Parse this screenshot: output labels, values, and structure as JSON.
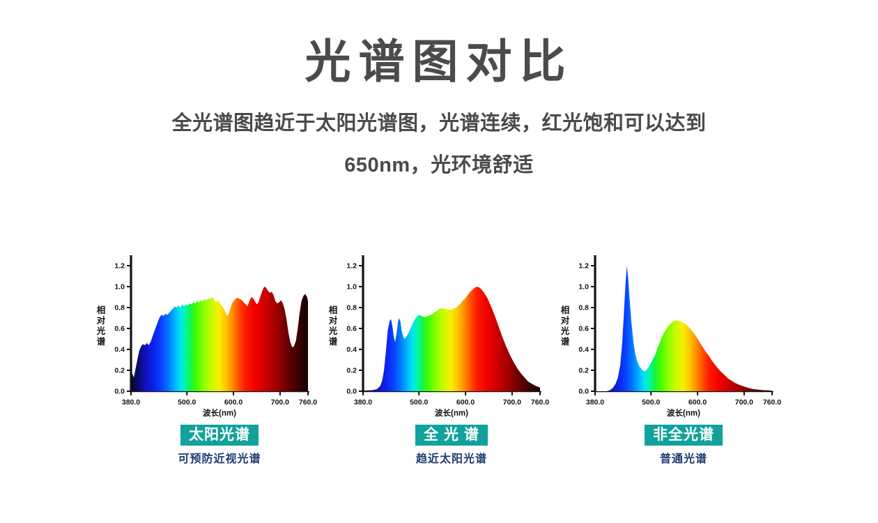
{
  "page": {
    "title": "光谱图对比",
    "subtitle_line1": "全光谱图趋近于太阳光谱图，光谱连续，红光饱和可以达到",
    "subtitle_line2": "650nm，光环境舒适"
  },
  "colors": {
    "title_text": "#4b4b4d",
    "subtitle_text": "#4a4a4a",
    "badge_bg": "#12a19c",
    "badge_text": "#ffffff",
    "caption_text": "#1e3a73",
    "axis": "#111111",
    "page_bg": "#ffffff"
  },
  "spectrum_gradient": [
    [
      380,
      "#06061f"
    ],
    [
      395,
      "#0a0a70"
    ],
    [
      410,
      "#1111b8"
    ],
    [
      428,
      "#0c20ea"
    ],
    [
      445,
      "#0a40ff"
    ],
    [
      460,
      "#0077ff"
    ],
    [
      474,
      "#00b3ff"
    ],
    [
      486,
      "#00e4f2"
    ],
    [
      496,
      "#00f7ae"
    ],
    [
      507,
      "#12f54a"
    ],
    [
      520,
      "#41fb00"
    ],
    [
      537,
      "#8fff00"
    ],
    [
      554,
      "#cdf900"
    ],
    [
      569,
      "#f6ef00"
    ],
    [
      583,
      "#ffc400"
    ],
    [
      597,
      "#ff8f00"
    ],
    [
      611,
      "#ff4f00"
    ],
    [
      625,
      "#ff1b00"
    ],
    [
      643,
      "#f20400"
    ],
    [
      663,
      "#d60000"
    ],
    [
      688,
      "#a80000"
    ],
    [
      712,
      "#700000"
    ],
    [
      736,
      "#3e0000"
    ],
    [
      760,
      "#150000"
    ]
  ],
  "chart_data": [
    {
      "type": "area",
      "badge_label": "太阳光谱",
      "caption": "可预防近视光谱",
      "xlabel": "波长(nm)",
      "ylabel": "相对光谱",
      "xlim": [
        380,
        760
      ],
      "ylim": [
        0,
        1.3
      ],
      "x_ticks": [
        380,
        500,
        600,
        700,
        760
      ],
      "y_ticks": [
        0,
        0.2,
        0.4,
        0.6,
        0.8,
        1.0,
        1.2
      ],
      "grid": false,
      "series": [
        {
          "name": "太阳光谱",
          "points": [
            [
              380,
              0.1
            ],
            [
              383,
              0.17
            ],
            [
              386,
              0.13
            ],
            [
              390,
              0.22
            ],
            [
              394,
              0.31
            ],
            [
              398,
              0.39
            ],
            [
              402,
              0.43
            ],
            [
              406,
              0.45
            ],
            [
              410,
              0.44
            ],
            [
              414,
              0.46
            ],
            [
              418,
              0.44
            ],
            [
              422,
              0.47
            ],
            [
              426,
              0.52
            ],
            [
              430,
              0.57
            ],
            [
              434,
              0.62
            ],
            [
              438,
              0.67
            ],
            [
              442,
              0.71
            ],
            [
              446,
              0.73
            ],
            [
              450,
              0.72
            ],
            [
              454,
              0.74
            ],
            [
              458,
              0.73
            ],
            [
              462,
              0.75
            ],
            [
              466,
              0.77
            ],
            [
              470,
              0.79
            ],
            [
              474,
              0.81
            ],
            [
              478,
              0.8
            ],
            [
              482,
              0.82
            ],
            [
              486,
              0.8
            ],
            [
              490,
              0.83
            ],
            [
              494,
              0.81
            ],
            [
              498,
              0.83
            ],
            [
              502,
              0.82
            ],
            [
              506,
              0.84
            ],
            [
              510,
              0.83
            ],
            [
              514,
              0.85
            ],
            [
              518,
              0.84
            ],
            [
              522,
              0.86
            ],
            [
              526,
              0.85
            ],
            [
              530,
              0.87
            ],
            [
              534,
              0.86
            ],
            [
              538,
              0.88
            ],
            [
              542,
              0.87
            ],
            [
              546,
              0.89
            ],
            [
              550,
              0.88
            ],
            [
              554,
              0.9
            ],
            [
              558,
              0.88
            ],
            [
              562,
              0.85
            ],
            [
              566,
              0.87
            ],
            [
              570,
              0.85
            ],
            [
              574,
              0.82
            ],
            [
              578,
              0.8
            ],
            [
              582,
              0.76
            ],
            [
              586,
              0.72
            ],
            [
              590,
              0.74
            ],
            [
              594,
              0.8
            ],
            [
              598,
              0.85
            ],
            [
              602,
              0.87
            ],
            [
              606,
              0.89
            ],
            [
              610,
              0.89
            ],
            [
              614,
              0.88
            ],
            [
              618,
              0.87
            ],
            [
              622,
              0.85
            ],
            [
              626,
              0.83
            ],
            [
              630,
              0.81
            ],
            [
              634,
              0.86
            ],
            [
              638,
              0.9
            ],
            [
              642,
              0.89
            ],
            [
              646,
              0.86
            ],
            [
              650,
              0.83
            ],
            [
              654,
              0.85
            ],
            [
              658,
              0.91
            ],
            [
              662,
              0.96
            ],
            [
              666,
              1.0
            ],
            [
              670,
              0.99
            ],
            [
              674,
              0.96
            ],
            [
              678,
              0.94
            ],
            [
              682,
              0.95
            ],
            [
              686,
              0.92
            ],
            [
              690,
              0.86
            ],
            [
              694,
              0.84
            ],
            [
              698,
              0.85
            ],
            [
              702,
              0.87
            ],
            [
              706,
              0.84
            ],
            [
              710,
              0.78
            ],
            [
              714,
              0.68
            ],
            [
              718,
              0.56
            ],
            [
              722,
              0.47
            ],
            [
              726,
              0.42
            ],
            [
              730,
              0.43
            ],
            [
              734,
              0.48
            ],
            [
              738,
              0.6
            ],
            [
              742,
              0.75
            ],
            [
              746,
              0.86
            ],
            [
              750,
              0.91
            ],
            [
              754,
              0.93
            ],
            [
              758,
              0.9
            ],
            [
              760,
              0.86
            ]
          ]
        }
      ]
    },
    {
      "type": "area",
      "badge_label": "全 光 谱",
      "caption": "趋近太阳光谱",
      "xlabel": "波长(nm)",
      "ylabel": "相对光谱",
      "xlim": [
        380,
        760
      ],
      "ylim": [
        0,
        1.3
      ],
      "x_ticks": [
        380,
        500,
        600,
        700,
        760
      ],
      "y_ticks": [
        0,
        0.2,
        0.4,
        0.6,
        0.8,
        1.0,
        1.2
      ],
      "grid": false,
      "series": [
        {
          "name": "全光谱",
          "points": [
            [
              380,
              0.005
            ],
            [
              400,
              0.01
            ],
            [
              410,
              0.02
            ],
            [
              417,
              0.05
            ],
            [
              421,
              0.1
            ],
            [
              425,
              0.2
            ],
            [
              429,
              0.38
            ],
            [
              433,
              0.58
            ],
            [
              437,
              0.67
            ],
            [
              440,
              0.69
            ],
            [
              443,
              0.62
            ],
            [
              446,
              0.52
            ],
            [
              449,
              0.47
            ],
            [
              452,
              0.55
            ],
            [
              455,
              0.66
            ],
            [
              457,
              0.7
            ],
            [
              460,
              0.67
            ],
            [
              463,
              0.58
            ],
            [
              466,
              0.52
            ],
            [
              469,
              0.5
            ],
            [
              473,
              0.52
            ],
            [
              478,
              0.56
            ],
            [
              483,
              0.61
            ],
            [
              488,
              0.66
            ],
            [
              493,
              0.7
            ],
            [
              497,
              0.72
            ],
            [
              500,
              0.73
            ],
            [
              505,
              0.72
            ],
            [
              510,
              0.71
            ],
            [
              515,
              0.71
            ],
            [
              520,
              0.72
            ],
            [
              525,
              0.73
            ],
            [
              530,
              0.74
            ],
            [
              535,
              0.76
            ],
            [
              540,
              0.77
            ],
            [
              545,
              0.79
            ],
            [
              550,
              0.79
            ],
            [
              555,
              0.79
            ],
            [
              560,
              0.78
            ],
            [
              565,
              0.78
            ],
            [
              570,
              0.78
            ],
            [
              575,
              0.79
            ],
            [
              580,
              0.8
            ],
            [
              585,
              0.82
            ],
            [
              590,
              0.84
            ],
            [
              595,
              0.87
            ],
            [
              600,
              0.89
            ],
            [
              605,
              0.92
            ],
            [
              610,
              0.95
            ],
            [
              615,
              0.97
            ],
            [
              620,
              0.99
            ],
            [
              625,
              1.0
            ],
            [
              630,
              0.99
            ],
            [
              635,
              0.97
            ],
            [
              640,
              0.94
            ],
            [
              647,
              0.89
            ],
            [
              655,
              0.81
            ],
            [
              663,
              0.72
            ],
            [
              671,
              0.62
            ],
            [
              679,
              0.52
            ],
            [
              687,
              0.43
            ],
            [
              695,
              0.35
            ],
            [
              703,
              0.28
            ],
            [
              711,
              0.22
            ],
            [
              719,
              0.17
            ],
            [
              727,
              0.13
            ],
            [
              735,
              0.09
            ],
            [
              743,
              0.07
            ],
            [
              751,
              0.05
            ],
            [
              760,
              0.035
            ]
          ]
        }
      ]
    },
    {
      "type": "area",
      "badge_label": "非全光谱",
      "caption": "普通光谱",
      "xlabel": "波长(nm)",
      "ylabel": "相对光谱",
      "xlim": [
        380,
        760
      ],
      "ylim": [
        0,
        1.3
      ],
      "x_ticks": [
        380,
        500,
        600,
        700,
        760
      ],
      "y_ticks": [
        0,
        0.2,
        0.4,
        0.6,
        0.8,
        1.0,
        1.2
      ],
      "grid": false,
      "series": [
        {
          "name": "非全光谱",
          "points": [
            [
              380,
              0.0
            ],
            [
              405,
              0.0
            ],
            [
              412,
              0.01
            ],
            [
              418,
              0.03
            ],
            [
              424,
              0.07
            ],
            [
              429,
              0.13
            ],
            [
              434,
              0.25
            ],
            [
              438,
              0.45
            ],
            [
              442,
              0.75
            ],
            [
              445,
              1.0
            ],
            [
              448,
              1.2
            ],
            [
              451,
              1.08
            ],
            [
              454,
              0.88
            ],
            [
              458,
              0.66
            ],
            [
              462,
              0.48
            ],
            [
              466,
              0.36
            ],
            [
              470,
              0.29
            ],
            [
              475,
              0.24
            ],
            [
              480,
              0.21
            ],
            [
              485,
              0.19
            ],
            [
              490,
              0.2
            ],
            [
              495,
              0.23
            ],
            [
              500,
              0.27
            ],
            [
              507,
              0.33
            ],
            [
              514,
              0.41
            ],
            [
              521,
              0.49
            ],
            [
              528,
              0.56
            ],
            [
              535,
              0.61
            ],
            [
              542,
              0.65
            ],
            [
              549,
              0.67
            ],
            [
              555,
              0.68
            ],
            [
              561,
              0.67
            ],
            [
              568,
              0.66
            ],
            [
              575,
              0.64
            ],
            [
              582,
              0.61
            ],
            [
              589,
              0.57
            ],
            [
              596,
              0.53
            ],
            [
              603,
              0.48
            ],
            [
              610,
              0.43
            ],
            [
              617,
              0.38
            ],
            [
              624,
              0.34
            ],
            [
              631,
              0.29
            ],
            [
              638,
              0.25
            ],
            [
              645,
              0.21
            ],
            [
              652,
              0.18
            ],
            [
              659,
              0.15
            ],
            [
              666,
              0.12
            ],
            [
              673,
              0.1
            ],
            [
              680,
              0.08
            ],
            [
              690,
              0.06
            ],
            [
              700,
              0.045
            ],
            [
              710,
              0.03
            ],
            [
              720,
              0.02
            ],
            [
              730,
              0.015
            ],
            [
              740,
              0.01
            ],
            [
              750,
              0.008
            ],
            [
              760,
              0.005
            ]
          ]
        }
      ]
    }
  ]
}
